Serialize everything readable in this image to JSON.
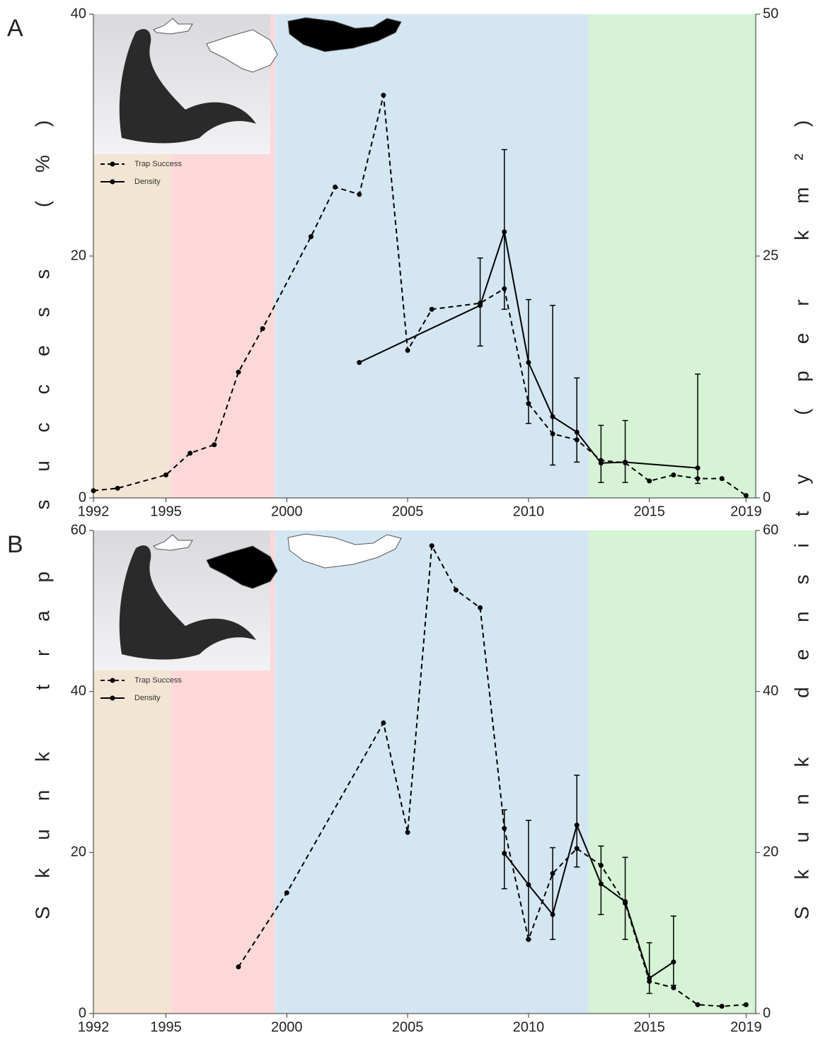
{
  "chart_data": [
    {
      "type": "line",
      "panel_label": "A",
      "ylabel": "Skunk trap success (%)",
      "y2label": "Skunk density (per km²)",
      "xlim": [
        1992,
        2019.4
      ],
      "xticks": [
        1992,
        1995,
        2000,
        2005,
        2010,
        2015,
        2019
      ],
      "ylim": [
        0,
        40
      ],
      "yticks": [
        0,
        20,
        40
      ],
      "y2lim": [
        0,
        50
      ],
      "y2ticks": [
        0,
        25,
        50
      ],
      "legend": "upper left",
      "bands": [
        {
          "from": 1992,
          "to": 1995.2,
          "color": "#f3e5d4"
        },
        {
          "from": 1995.2,
          "to": 1999.5,
          "color": "#fdd8d9"
        },
        {
          "from": 1999.5,
          "to": 2012.5,
          "color": "#d5e6f3"
        },
        {
          "from": 2012.5,
          "to": 2019.4,
          "color": "#d6f3d6"
        }
      ],
      "series": [
        {
          "name": "Trap Success",
          "color": "#000000",
          "dashed": true,
          "x": [
            1992,
            1993,
            1995,
            1996,
            1997,
            1998,
            1999,
            2001,
            2002,
            2003,
            2004,
            2005,
            2006,
            2008,
            2009,
            2010,
            2011,
            2012,
            2013,
            2014,
            2015,
            2016,
            2017,
            2018,
            2019
          ],
          "values": [
            0.6,
            0.8,
            1.9,
            3.7,
            4.4,
            10.4,
            14.0,
            21.6,
            25.7,
            25.1,
            33.3,
            12.2,
            15.6,
            16.1,
            17.3,
            7.8,
            5.3,
            4.8,
            3.1,
            2.9,
            1.4,
            1.9,
            1.6,
            1.6,
            0.2
          ]
        },
        {
          "name": "Density",
          "color": "#000000",
          "dashed": false,
          "axis": "y2",
          "x": [
            2003,
            2008,
            2009,
            2010,
            2011,
            2012,
            2013,
            2014,
            2017
          ],
          "values": [
            14.0,
            19.9,
            27.5,
            14.0,
            8.4,
            6.8,
            3.6,
            3.7,
            3.1
          ],
          "lower": [
            null,
            15.7,
            19.5,
            7.7,
            3.4,
            3.7,
            1.6,
            1.6,
            1.5
          ],
          "upper": [
            null,
            24.8,
            36.0,
            20.5,
            19.9,
            12.4,
            7.5,
            8.0,
            12.8
          ]
        }
      ]
    },
    {
      "type": "line",
      "panel_label": "B",
      "xlim": [
        1992,
        2019.4
      ],
      "xticks": [
        1992,
        1995,
        2000,
        2005,
        2010,
        2015,
        2019
      ],
      "ylim": [
        0,
        60
      ],
      "yticks": [
        0,
        20,
        40,
        60
      ],
      "y2lim": [
        0,
        60
      ],
      "y2ticks": [
        0,
        20,
        40,
        60
      ],
      "legend": "upper left",
      "bands": [
        {
          "from": 1992,
          "to": 1995.2,
          "color": "#f3e5d4"
        },
        {
          "from": 1995.2,
          "to": 1999.5,
          "color": "#fdd8d9"
        },
        {
          "from": 1999.5,
          "to": 2012.5,
          "color": "#d5e6f3"
        },
        {
          "from": 2012.5,
          "to": 2019.4,
          "color": "#d6f3d6"
        }
      ],
      "series": [
        {
          "name": "Trap Success",
          "color": "#000000",
          "dashed": true,
          "x": [
            1998,
            2000,
            2004,
            2005,
            2006,
            2007,
            2008,
            2009,
            2010,
            2011,
            2012,
            2013,
            2014,
            2015,
            2016,
            2017,
            2018,
            2019
          ],
          "values": [
            5.8,
            15.0,
            36.1,
            22.5,
            58.1,
            52.6,
            50.4,
            23.0,
            9.2,
            17.4,
            20.5,
            18.4,
            13.7,
            4.0,
            3.2,
            1.1,
            0.9,
            1.1
          ]
        },
        {
          "name": "Density",
          "color": "#000000",
          "dashed": false,
          "axis": "y2",
          "x": [
            2009,
            2010,
            2011,
            2012,
            2013,
            2014,
            2015,
            2016
          ],
          "values": [
            19.9,
            16.0,
            12.3,
            23.4,
            16.1,
            13.9,
            4.4,
            6.4
          ],
          "lower": [
            15.5,
            9.2,
            9.2,
            18.2,
            12.3,
            9.2,
            2.5,
            3.5
          ],
          "upper": [
            25.3,
            24.0,
            20.6,
            29.6,
            20.8,
            19.4,
            8.8,
            12.1
          ]
        }
      ]
    }
  ]
}
